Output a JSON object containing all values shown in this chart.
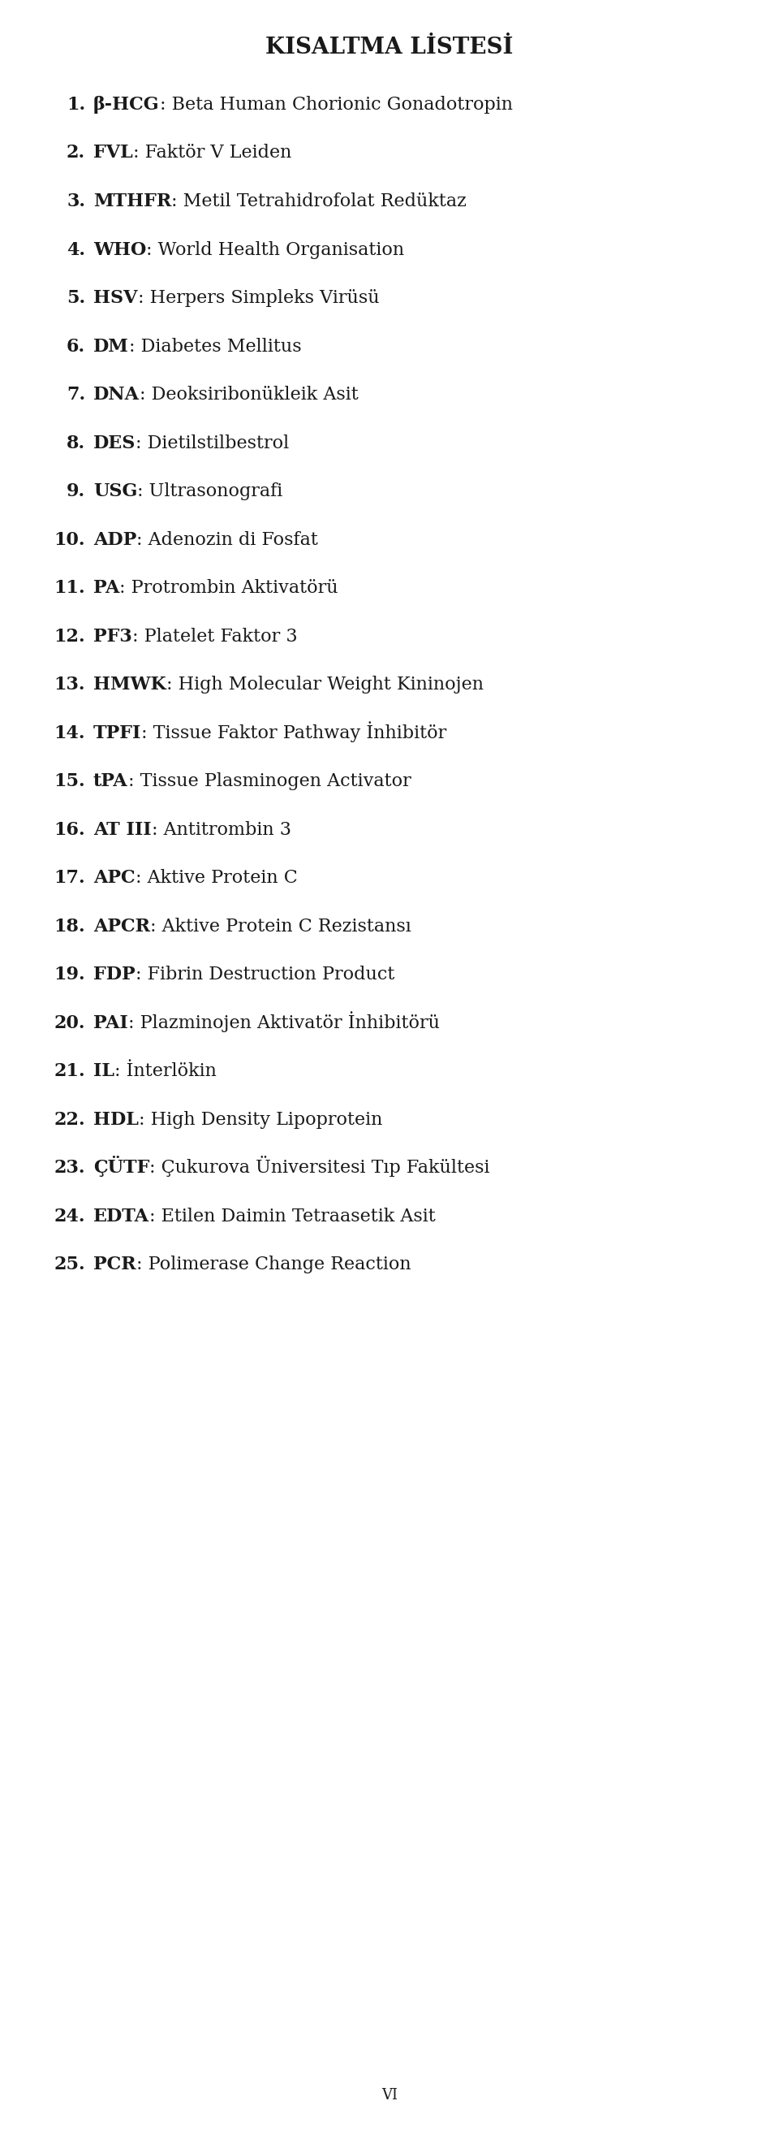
{
  "title": "KISALTMA LİSTESİ",
  "items": [
    {
      "num": "1.",
      "bold_part": "β-HCG",
      "rest": ": Beta Human Chorionic Gonadotropin"
    },
    {
      "num": "2.",
      "bold_part": "FVL",
      "rest": ": Faktör V Leiden"
    },
    {
      "num": "3.",
      "bold_part": "MTHFR",
      "rest": ": Metil Tetrahidrofolat Redüktaz"
    },
    {
      "num": "4.",
      "bold_part": "WHO",
      "rest": ": World Health Organisation"
    },
    {
      "num": "5.",
      "bold_part": "HSV",
      "rest": ": Herpers Simpleks Virüsü"
    },
    {
      "num": "6.",
      "bold_part": "DM",
      "rest": ": Diabetes Mellitus"
    },
    {
      "num": "7.",
      "bold_part": "DNA",
      "rest": ": Deoksiribonükleik Asit"
    },
    {
      "num": "8.",
      "bold_part": "DES",
      "rest": ": Dietilstilbestrol"
    },
    {
      "num": "9.",
      "bold_part": "USG",
      "rest": ": Ultrasonografi"
    },
    {
      "num": "10.",
      "bold_part": "ADP",
      "rest": ": Adenozin di Fosfat"
    },
    {
      "num": "11.",
      "bold_part": "PA",
      "rest": ": Protrombin Aktivatörü"
    },
    {
      "num": "12.",
      "bold_part": "PF3",
      "rest": ": Platelet Faktor 3"
    },
    {
      "num": "13.",
      "bold_part": "HMWK",
      "rest": ": High Molecular Weight Kininojen"
    },
    {
      "num": "14.",
      "bold_part": "TPFI",
      "rest": ": Tissue Faktor Pathway İnhibitör"
    },
    {
      "num": "15.",
      "bold_part": "tPA",
      "rest": ": Tissue Plasminogen Activator"
    },
    {
      "num": "16.",
      "bold_part": "AT III",
      "rest": ": Antitrombin 3"
    },
    {
      "num": "17.",
      "bold_part": "APC",
      "rest": ": Aktive Protein C"
    },
    {
      "num": "18.",
      "bold_part": "APCR",
      "rest": ": Aktive Protein C Rezistansı"
    },
    {
      "num": "19.",
      "bold_part": "FDP",
      "rest": ": Fibrin Destruction Product"
    },
    {
      "num": "20.",
      "bold_part": "PAI",
      "rest": ": Plazminojen Aktivatör İnhibitörü"
    },
    {
      "num": "21.",
      "bold_part": "IL",
      "rest": ": İnterlökin"
    },
    {
      "num": "22.",
      "bold_part": "HDL",
      "rest": ": High Density Lipoprotein"
    },
    {
      "num": "23.",
      "bold_part": "ÇÜTF",
      "rest": ": Çukurova Üniversitesi Tıp Fakültesi"
    },
    {
      "num": "24.",
      "bold_part": "EDTA",
      "rest": ": Etilen Daimin Tetraasetik Asit"
    },
    {
      "num": "25.",
      "bold_part": "PCR",
      "rest": ": Polimerase Change Reaction"
    }
  ],
  "footer": "VI",
  "bg_color": "#ffffff",
  "text_color": "#1a1a1a",
  "title_fontsize": 20,
  "item_fontsize": 16,
  "footer_fontsize": 13
}
